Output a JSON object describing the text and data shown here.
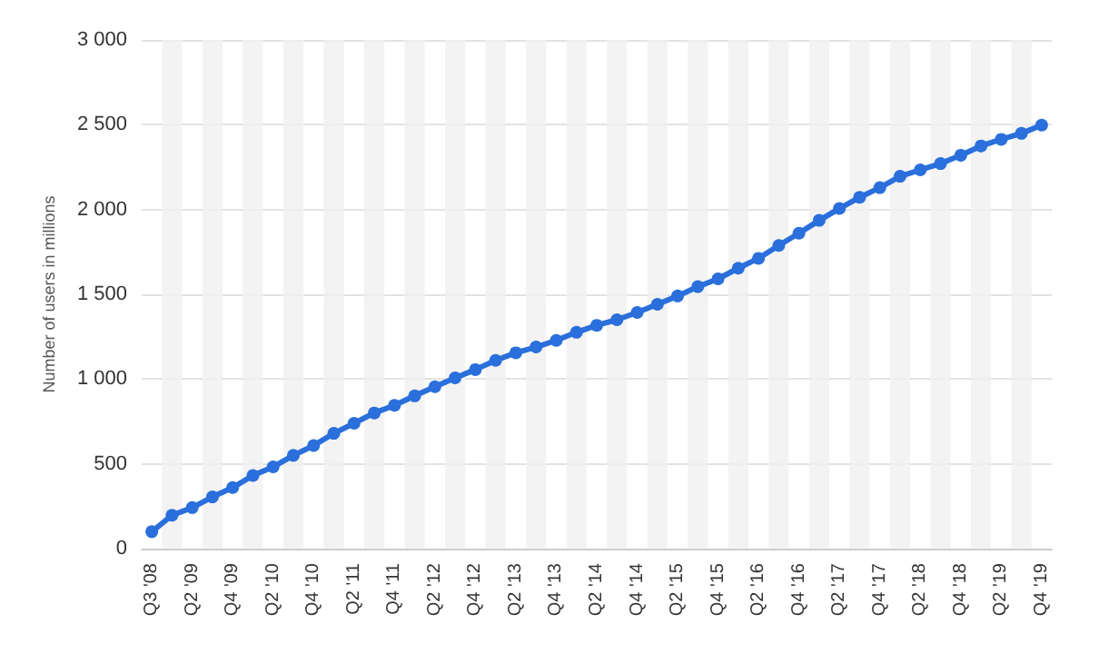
{
  "chart_data": {
    "type": "line",
    "ylabel": "Number of users in millions",
    "categories": [
      "Q3 '08",
      null,
      "Q2 '09",
      null,
      "Q4 '09",
      null,
      "Q2 '10",
      null,
      "Q4 '10",
      null,
      "Q2 '11",
      null,
      "Q4 '11",
      null,
      "Q2 '12",
      null,
      "Q4 '12",
      null,
      "Q2 '13",
      null,
      "Q4 '13",
      null,
      "Q2 '14",
      null,
      "Q4 '14",
      null,
      "Q2 '15",
      null,
      "Q4 '15",
      null,
      "Q2 '16",
      null,
      "Q4 '16",
      null,
      "Q2 '17",
      null,
      "Q4 '17",
      null,
      "Q2 '18",
      null,
      "Q4 '18",
      null,
      "Q2 '19",
      null,
      "Q4 '19"
    ],
    "series": [
      {
        "color": "#2a6fdb",
        "values": [
          100,
          197,
          242,
          305,
          360,
          431,
          482,
          550,
          608,
          680,
          739,
          800,
          845,
          901,
          955,
          1007,
          1056,
          1110,
          1155,
          1189,
          1228,
          1276,
          1317,
          1350,
          1393,
          1441,
          1490,
          1545,
          1591,
          1654,
          1712,
          1788,
          1860,
          1936,
          2006,
          2072,
          2129,
          2196,
          2234,
          2271,
          2320,
          2375,
          2414,
          2449,
          2498
        ]
      }
    ],
    "ylim": [
      0,
      3000
    ],
    "yticks": [
      0,
      500,
      {
        "value": 1000,
        "label": "1 000"
      },
      {
        "value": 1500,
        "label": "1 500"
      },
      {
        "value": 2000,
        "label": "2 000"
      },
      {
        "value": 2500,
        "label": "2 500"
      },
      {
        "value": 3000,
        "label": "3 000"
      }
    ],
    "grid": "y",
    "marker": "circle",
    "line_style": "solid"
  }
}
